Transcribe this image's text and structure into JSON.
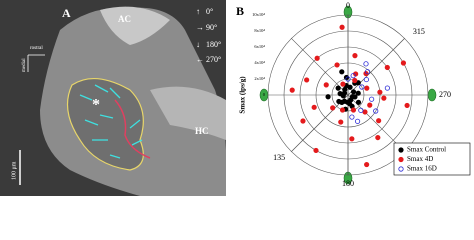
{
  "panel_a": {
    "label": "A",
    "regions": [
      "AC",
      "HC"
    ],
    "asterisk": "*",
    "orientation": [
      "rostral",
      "medial"
    ],
    "scale_bar": "100 μm",
    "direction_legend": [
      "0°",
      "90°",
      "180°",
      "270°"
    ]
  },
  "chart_data": {
    "type": "scatter",
    "polar": true,
    "panel_label": "B",
    "ylabel": "Smax (lps/g)",
    "rlim": [
      0,
      100000
    ],
    "rticks": [
      0,
      {
        "value": 20000,
        "label": "2x10⁴"
      },
      {
        "value": 40000,
        "label": "4x10⁴"
      },
      {
        "value": 60000,
        "label": "6x10⁴"
      },
      {
        "value": 80000,
        "label": "8x10⁴"
      },
      {
        "value": 100000,
        "label": "10x10⁴"
      }
    ],
    "angle_ticks": [
      0,
      315,
      270,
      225,
      180,
      135
    ],
    "legend": "lower right",
    "series": [
      {
        "name": "Smax Control",
        "color": "#000000",
        "marker": "filled",
        "theta": [
          10,
          30,
          55,
          80,
          100,
          125,
          150,
          170,
          190,
          210,
          235,
          255,
          280,
          300,
          320,
          345,
          5,
          60,
          140,
          200,
          250,
          330,
          15,
          95,
          175
        ],
        "values": [
          12000,
          8000,
          15000,
          10000,
          6000,
          14000,
          9000,
          18000,
          11000,
          7000,
          16000,
          9000,
          13000,
          8000,
          20000,
          10000,
          22000,
          5000,
          12000,
          15000,
          6000,
          17000,
          30000,
          25000,
          9000
        ]
      },
      {
        "name": "Smax 4D",
        "color": "#e41a1c",
        "marker": "filled",
        "theta": [
          5,
          20,
          40,
          65,
          85,
          110,
          130,
          150,
          165,
          185,
          200,
          215,
          230,
          245,
          260,
          275,
          290,
          305,
          320,
          335,
          350,
          25,
          70,
          120,
          160,
          195,
          225,
          265,
          300,
          340
        ],
        "values": [
          85000,
          40000,
          60000,
          30000,
          70000,
          45000,
          25000,
          80000,
          35000,
          55000,
          20000,
          65000,
          50000,
          30000,
          75000,
          40000,
          25000,
          60000,
          35000,
          20000,
          50000,
          15000,
          55000,
          65000,
          20000,
          90000,
          30000,
          45000,
          80000,
          28000
        ]
      },
      {
        "name": "Smax 16D",
        "color": "#2b2bd6",
        "marker": "open",
        "theta": [
          310,
          330,
          345,
          320,
          300,
          200,
          220,
          240,
          260,
          0,
          280,
          190
        ],
        "values": [
          30000,
          45000,
          25000,
          38000,
          20000,
          35000,
          25000,
          40000,
          30000,
          20000,
          50000,
          28000
        ]
      }
    ]
  }
}
